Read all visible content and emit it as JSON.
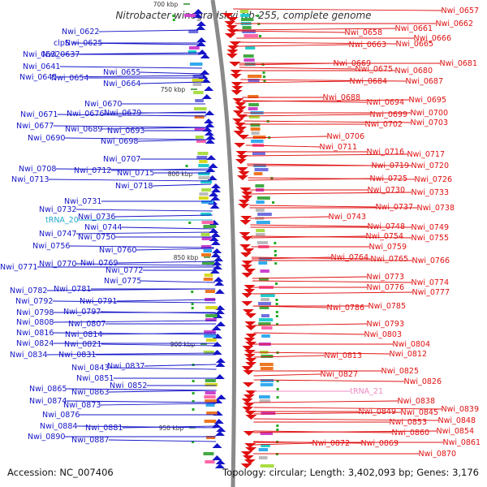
{
  "title": "Nitrobacter winogradskyi Nb-255, complete genome",
  "footer": {
    "accession": "Accession: NC_007406",
    "topology": "Topology: circular; Length: 3,402,093 bp; Genes: 3,176"
  },
  "colors": {
    "minus_strand": "#1515c8",
    "plus_strand": "#e01010",
    "trna_minus": "#22aacc",
    "trna_plus": "#ee88c0",
    "backbone": "#8a8a8a"
  },
  "scale_ticks": [
    "700 kbp",
    "750 kbp",
    "800 kbp",
    "850 kbp",
    "900 kbp",
    "950 kbp"
  ],
  "left_labels": [
    "Nwi_0622",
    "Nwi_0625",
    "clpS",
    "Nwi_0632",
    "Nwi_0637",
    "Nwi_0641",
    "Nwi_0645",
    "Nwi_0654",
    "Nwi_0655",
    "Nwi_0664",
    "Nwi_0670",
    "Nwi_0671",
    "Nwi_0676",
    "Nwi_0679",
    "Nwi_0677",
    "Nwi_0689",
    "Nwi_0693",
    "Nwi_0690",
    "Nwi_0698",
    "Nwi_0707",
    "Nwi_0708",
    "Nwi_0712",
    "Nwi_0715",
    "Nwi_0713",
    "Nwi_0718",
    "Nwi_0731",
    "Nwi_0732",
    "Nwi_0736",
    "tRNA_20",
    "Nwi_0744",
    "Nwi_0747",
    "Nwi_0750",
    "Nwi_0756",
    "Nwi_0760",
    "Nwi_0771",
    "Nwi_0770",
    "Nwi_0769",
    "Nwi_0772",
    "Nwi_0775",
    "Nwi_0782",
    "Nwi_0781",
    "Nwi_0792",
    "Nwi_0791",
    "Nwi_0798",
    "Nwi_0797",
    "Nwi_0808",
    "Nwi_0807",
    "Nwi_0816",
    "Nwi_0814",
    "Nwi_0824",
    "Nwi_0821",
    "Nwi_0834",
    "Nwi_0831",
    "Nwi_0843",
    "Nwi_0837",
    "Nwi_0851",
    "Nwi_0865",
    "Nwi_0863",
    "Nwi_0852",
    "Nwi_0874",
    "Nwi_0873",
    "Nwi_0876",
    "Nwi_0884",
    "Nwi_0881",
    "Nwi_0890",
    "Nwi_0887"
  ],
  "right_labels": [
    "Nwi_0657",
    "Nwi_0662",
    "Nwi_0661",
    "Nwi_0658",
    "Nwi_0666",
    "Nwi_0663",
    "Nwi_0665",
    "Nwi_0681",
    "Nwi_0669",
    "Nwi_0675",
    "Nwi_0680",
    "Nwi_0684",
    "Nwi_0687",
    "Nwi_0688",
    "Nwi_0695",
    "Nwi_0694",
    "Nwi_0700",
    "Nwi_0699",
    "Nwi_0703",
    "Nwi_0702",
    "Nwi_0706",
    "Nwi_0711",
    "Nwi_0716",
    "Nwi_0717",
    "Nwi_0719",
    "Nwi_0720",
    "Nwi_0725",
    "Nwi_0726",
    "Nwi_0730",
    "Nwi_0733",
    "Nwi_0737",
    "Nwi_0738",
    "Nwi_0743",
    "Nwi_0748",
    "Nwi_0749",
    "Nwi_0754",
    "Nwi_0755",
    "Nwi_0759",
    "Nwi_0764",
    "Nwi_0765",
    "Nwi_0766",
    "Nwi_0773",
    "Nwi_0774",
    "Nwi_0776",
    "Nwi_0777",
    "Nwi_0786",
    "Nwi_0785",
    "Nwi_0793",
    "Nwi_0803",
    "Nwi_0804",
    "Nwi_0813",
    "Nwi_0812",
    "Nwi_0825",
    "Nwi_0827",
    "Nwi_0826",
    "tRNA_21",
    "Nwi_0838",
    "Nwi_0839",
    "Nwi_0849",
    "Nwi_0845",
    "Nwi_0848",
    "Nwi_0853",
    "Nwi_0854",
    "Nwi_0860",
    "Nwi_0861",
    "Nwi_0872",
    "Nwi_0869",
    "Nwi_0870"
  ]
}
